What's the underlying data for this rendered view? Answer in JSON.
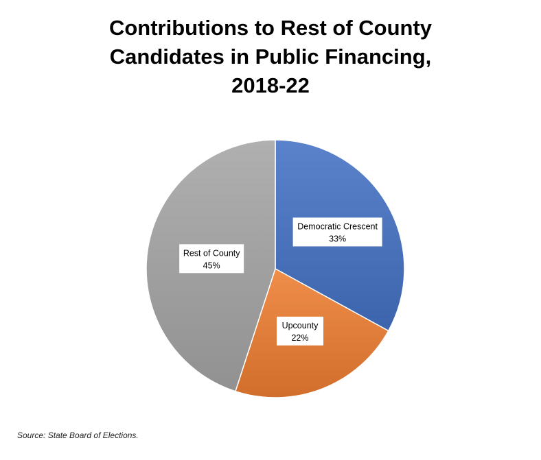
{
  "chart_data": {
    "type": "pie",
    "title_lines": [
      "Contributions to Rest of County",
      "Candidates in Public Financing,",
      "2018-22"
    ],
    "slices": [
      {
        "label": "Democratic Crescent",
        "value": 33,
        "value_label": "33%",
        "color": "#4472C4"
      },
      {
        "label": "Upcounty",
        "value": 22,
        "value_label": "22%",
        "color": "#ED7D31"
      },
      {
        "label": "Rest of County",
        "value": 45,
        "value_label": "45%",
        "color": "#A5A5A5"
      }
    ],
    "start_angle": "12 o'clock",
    "direction": "clockwise",
    "legend": "none",
    "data_labels": "inside"
  },
  "source": "Source: State Board of Elections."
}
